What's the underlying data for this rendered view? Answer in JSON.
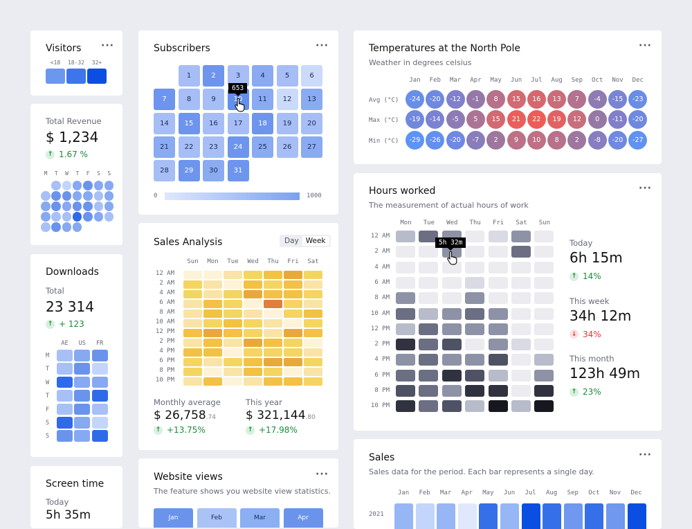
{
  "visitors": {
    "title": "Visitors",
    "groups": [
      "<18",
      "18-32",
      "32+"
    ],
    "colors": [
      "#6b97ef",
      "#3d76ea",
      "#0a4fe2"
    ]
  },
  "revenue": {
    "label": "Total Revenue",
    "value": "$ 1,234",
    "change": "1.67 %",
    "days": [
      "M",
      "T",
      "W",
      "T",
      "F",
      "S",
      "S"
    ],
    "dots": [
      null,
      1,
      0,
      2,
      3,
      2,
      2,
      1,
      3,
      3,
      2,
      2,
      1,
      2,
      2,
      3,
      2,
      3,
      3,
      1,
      2,
      2,
      1,
      1,
      4,
      3,
      2,
      1,
      1,
      3,
      2,
      2
    ]
  },
  "downloads": {
    "title": "Downloads",
    "label": "Total",
    "value": "23 314",
    "change": "+ 123",
    "cols": [
      "AE",
      "US",
      "FR"
    ],
    "rows": [
      "M",
      "T",
      "W",
      "T",
      "F",
      "S",
      "S"
    ],
    "grid": [
      [
        1,
        2,
        3
      ],
      [
        1,
        3,
        0
      ],
      [
        4,
        2,
        2
      ],
      [
        1,
        3,
        4
      ],
      [
        1,
        3,
        1
      ],
      [
        4,
        2,
        0
      ],
      [
        3,
        2,
        4
      ]
    ]
  },
  "screen_time": {
    "title": "Screen time",
    "label": "Today",
    "value": "5h 35m"
  },
  "subscribers": {
    "title": "Subscribers",
    "tooltip": "653",
    "legend_min": "0",
    "legend_max": "1000",
    "values": [
      300,
      600,
      300,
      450,
      300,
      100,
      600,
      300,
      300,
      653,
      450,
      100,
      450,
      300,
      600,
      300,
      300,
      600,
      300,
      300,
      450,
      300,
      300,
      600,
      450,
      300,
      450,
      300,
      600,
      450,
      600
    ]
  },
  "sales_analysis": {
    "title": "Sales Analysis",
    "toggle": [
      "Day",
      "Week"
    ],
    "active": "Week",
    "days": [
      "Sun",
      "Mon",
      "Tue",
      "Wed",
      "Thu",
      "Fri",
      "Sat"
    ],
    "hours": [
      "12 AM",
      "2 AM",
      "4 AM",
      "6 AM",
      "8 AM",
      "10 AM",
      "12 PM",
      "2 PM",
      "4 PM",
      "6 PM",
      "8 PM",
      "10 PM"
    ],
    "grid": [
      [
        0,
        0,
        1,
        2,
        3,
        4,
        2
      ],
      [
        2,
        1,
        0,
        3,
        2,
        3,
        1
      ],
      [
        2,
        1,
        2,
        4,
        3,
        3,
        2
      ],
      [
        1,
        3,
        2,
        0,
        5,
        2,
        1
      ],
      [
        1,
        3,
        2,
        1,
        0,
        2,
        3
      ],
      [
        1,
        2,
        3,
        2,
        1,
        0,
        2
      ],
      [
        3,
        4,
        3,
        2,
        1,
        4,
        3
      ],
      [
        1,
        3,
        1,
        4,
        3,
        2,
        0
      ],
      [
        3,
        3,
        0,
        2,
        2,
        2,
        1
      ],
      [
        2,
        1,
        2,
        3,
        4,
        4,
        2
      ],
      [
        2,
        0,
        1,
        3,
        2,
        0,
        1
      ],
      [
        1,
        3,
        0,
        1,
        3,
        3,
        2
      ]
    ],
    "monthly_label": "Monthly average",
    "monthly_value": "$ 26,758",
    "monthly_cents": ".74",
    "monthly_change": "+13.75%",
    "year_label": "This year",
    "year_value": "$ 321,144",
    "year_cents": ".80",
    "year_change": "+17.98%"
  },
  "website_views": {
    "title": "Website views",
    "subtitle": "The feature shows you website view statistics.",
    "months": [
      "Jan",
      "Feb",
      "Mar",
      "Apr"
    ],
    "levels": [
      3,
      1,
      2,
      3
    ]
  },
  "temperatures": {
    "title": "Temperatures at the North Pole",
    "subtitle": "Weather in degrees celsius",
    "months": [
      "Jan",
      "Feb",
      "Mar",
      "Apr",
      "May",
      "Jun",
      "Jul",
      "Aug",
      "Sep",
      "Oct",
      "Nov",
      "Dec"
    ],
    "rows": [
      {
        "label": "Avg (°C)",
        "values": [
          -24,
          -20,
          -12,
          -1,
          8,
          15,
          16,
          13,
          7,
          -4,
          -15,
          -23
        ]
      },
      {
        "label": "Max (°C)",
        "values": [
          -19,
          -14,
          -5,
          5,
          15,
          21,
          22,
          19,
          12,
          0,
          -11,
          -20
        ]
      },
      {
        "label": "Min (°C)",
        "values": [
          -29,
          -26,
          -20,
          -7,
          2,
          9,
          10,
          8,
          2,
          -8,
          -20,
          -27
        ]
      }
    ]
  },
  "hours_worked": {
    "title": "Hours worked",
    "subtitle": "The measurement of actual hours of work",
    "tooltip": "5h 32m",
    "days": [
      "Mon",
      "Tue",
      "Wed",
      "Thu",
      "Fri",
      "Sat",
      "Sun"
    ],
    "hours": [
      "12 AM",
      "2 AM",
      "4 AM",
      "6 AM",
      "8 AM",
      "10 AM",
      "12 PM",
      "2 PM",
      "4 PM",
      "6 PM",
      "8 PM",
      "10 PM"
    ],
    "grid": [
      [
        2,
        4,
        3,
        0,
        1,
        3,
        0
      ],
      [
        0,
        0,
        3,
        0,
        0,
        4,
        0
      ],
      [
        0,
        0,
        0,
        0,
        0,
        0,
        0
      ],
      [
        0,
        0,
        0,
        1,
        0,
        0,
        0
      ],
      [
        3,
        0,
        0,
        3,
        0,
        0,
        0
      ],
      [
        4,
        2,
        3,
        4,
        3,
        0,
        0
      ],
      [
        2,
        4,
        3,
        3,
        3,
        0,
        0
      ],
      [
        6,
        4,
        5,
        0,
        3,
        1,
        0
      ],
      [
        3,
        4,
        3,
        3,
        5,
        0,
        2
      ],
      [
        4,
        4,
        6,
        5,
        2,
        0,
        3
      ],
      [
        5,
        4,
        3,
        6,
        6,
        0,
        6
      ],
      [
        6,
        4,
        5,
        2,
        7,
        2,
        7
      ]
    ],
    "stats": [
      {
        "label": "Today",
        "value": "6h 15m",
        "change": "14%",
        "dir": "up"
      },
      {
        "label": "This week",
        "value": "34h 12m",
        "change": "34%",
        "dir": "down"
      },
      {
        "label": "This month",
        "value": "123h 49m",
        "change": "23%",
        "dir": "up"
      }
    ]
  },
  "sales": {
    "title": "Sales",
    "subtitle": "Sales data for the period. Each bar represents a single day.",
    "months": [
      "Jan",
      "Feb",
      "Mar",
      "Apr",
      "May",
      "Jun",
      "Jul",
      "Aug",
      "Sep",
      "Oct",
      "Nov",
      "Dec"
    ],
    "year": "2021",
    "levels": [
      2,
      1,
      2,
      0,
      4,
      2,
      5,
      4,
      3,
      4,
      3,
      5
    ]
  }
}
